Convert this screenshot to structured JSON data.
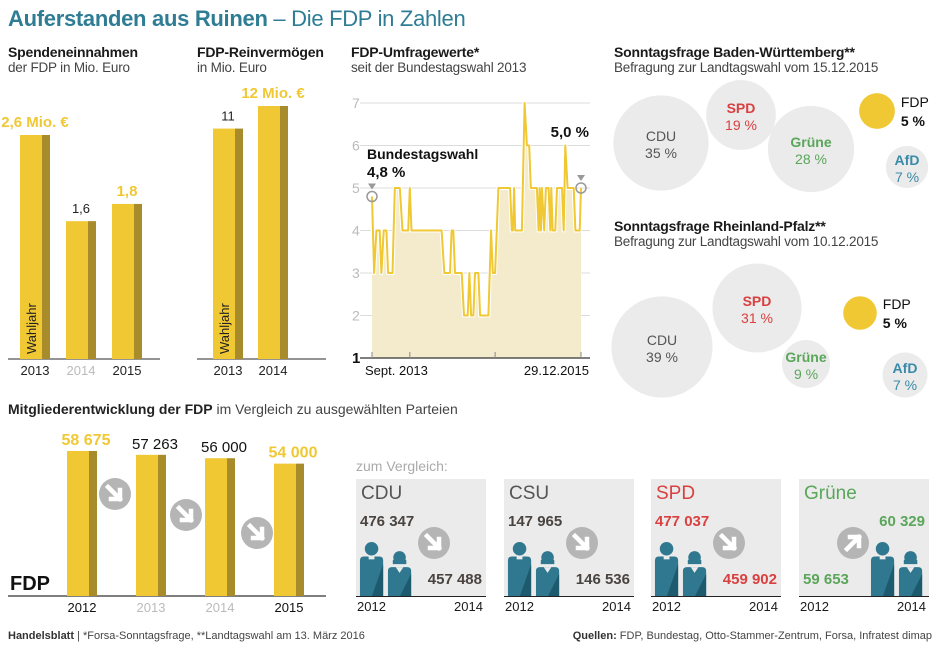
{
  "title": {
    "bold": "Auferstanden aus Ruinen",
    "rest": " – Die FDP in Zahlen"
  },
  "colors": {
    "title": "#2f7d95",
    "fdp_yellow": "#f0c833",
    "fdp_yellow_shadow": "#a88b2a",
    "gray_bubble": "#ebebeb",
    "spd_red": "#d94040",
    "gruene_green": "#5aa65a",
    "afd_blue": "#3a8aa8",
    "cdu_gray": "#555555",
    "people_teal": "#2f7890",
    "arrow_gray": "#b5b5b5",
    "area_fill": "#f3ebcc",
    "muted_year": "#bbbbbb"
  },
  "spenden": {
    "heading": "Spendeneinnahmen",
    "sub": "der FDP in Mio. Euro",
    "wahljahr": "Wahljahr"
  },
  "vermoegen": {
    "heading": "FDP-Reinvermögen",
    "sub": "in Mio. Euro",
    "wahljahr": "Wahljahr"
  },
  "umfrage": {
    "heading": "FDP-Umfragewerte*",
    "sub": "seit der Bundestagswahl 2013",
    "annotation_start_label": "Bundestagswahl",
    "annotation_start_value": "4,8 %",
    "annotation_end_value": "5,0 %"
  },
  "bw": {
    "heading": "Sonntagsfrage Baden-Württemberg**",
    "sub": "Befragung zur Landtagswahl vom 15.12.2015"
  },
  "rp": {
    "heading": "Sonntagsfrage Rheinland-Pfalz**",
    "sub": "Befragung zur Landtagswahl vom 10.12.2015"
  },
  "mitglieder": {
    "heading_bold": "Mitgliederentwicklung der FDP",
    "heading_rest": " im Vergleich zu ausgewählten Parteien",
    "party_label": "FDP",
    "compare_label": "zum Vergleich:"
  },
  "comparison": [
    {
      "party": "CDU",
      "color": "#555555",
      "v2012": "476 347",
      "v2014": "457 488",
      "trend": "down",
      "y2012": "2012",
      "y2014": "2014"
    },
    {
      "party": "CSU",
      "color": "#555555",
      "v2012": "147 965",
      "v2014": "146 536",
      "trend": "down",
      "y2012": "2012",
      "y2014": "2014"
    },
    {
      "party": "SPD",
      "color": "#d94040",
      "v2012": "477 037",
      "v2014": "459 902",
      "trend": "down",
      "y2012": "2012",
      "y2014": "2014"
    },
    {
      "party": "Grüne",
      "color": "#5aa65a",
      "v2012": "59 653",
      "v2014": "60 329",
      "trend": "up",
      "y2012": "2012",
      "y2014": "2014"
    }
  ],
  "footer": {
    "brand": "Handelsblatt",
    "note": " | *Forsa-Sonntagsfrage, **Landtagswahl am 13. März 2016",
    "sources_label": "Quellen:",
    "sources": " FDP, Bundestag, Otto-Stammer-Zentrum, Forsa, Infratest dimap"
  },
  "chart_data": [
    {
      "id": "spenden",
      "type": "bar",
      "title": "Spendeneinnahmen der FDP in Mio. Euro",
      "categories": [
        "2013",
        "2014",
        "2015"
      ],
      "values": [
        2.6,
        1.6,
        1.8
      ],
      "labels": [
        "2,6 Mio. €",
        "1,6",
        "1,8"
      ],
      "highlight": [
        true,
        false,
        true
      ],
      "category_muted": [
        false,
        true,
        false
      ],
      "annotation": "Wahljahr (2013)",
      "ylim": [
        0,
        2.6
      ]
    },
    {
      "id": "vermoegen",
      "type": "bar",
      "title": "FDP-Reinvermögen in Mio. Euro",
      "categories": [
        "2013",
        "2014"
      ],
      "values": [
        11,
        12
      ],
      "labels": [
        "11",
        "12 Mio. €"
      ],
      "highlight": [
        false,
        true
      ],
      "category_muted": [
        false,
        false
      ],
      "annotation": "Wahljahr (2013)",
      "ylim": [
        0,
        12
      ]
    },
    {
      "id": "umfrage",
      "type": "line",
      "title": "FDP-Umfragewerte* seit der Bundestagswahl 2013",
      "xlabel_start": "Sept. 2013",
      "xlabel_end": "29.12.2015",
      "ylim": [
        1,
        7
      ],
      "yticks": [
        1,
        2,
        3,
        4,
        5,
        6,
        7
      ],
      "x": [
        0,
        0.01,
        0.021,
        0.037,
        0.045,
        0.056,
        0.069,
        0.077,
        0.098,
        0.109,
        0.133,
        0.146,
        0.173,
        0.181,
        0.189,
        0.333,
        0.346,
        0.373,
        0.381,
        0.389,
        0.397,
        0.429,
        0.44,
        0.458,
        0.466,
        0.474,
        0.485,
        0.493,
        0.509,
        0.517,
        0.557,
        0.57,
        0.578,
        0.589,
        0.605,
        0.661,
        0.669,
        0.674,
        0.68,
        0.685,
        0.717,
        0.73,
        0.741,
        0.752,
        0.76,
        0.789,
        0.797,
        0.802,
        0.808,
        0.813,
        0.824,
        0.832,
        0.845,
        0.853,
        0.858,
        0.864,
        0.877,
        0.885,
        0.909,
        0.917,
        0.925,
        0.936,
        0.965,
        0.973,
        0.994,
        1.0
      ],
      "values": [
        4.8,
        3,
        4,
        4,
        3,
        4,
        4,
        3,
        3,
        5,
        5,
        4,
        4,
        5,
        4,
        4,
        3,
        3,
        4,
        4,
        3,
        3,
        2,
        2,
        3,
        2,
        2,
        3,
        3,
        2,
        2,
        4,
        3,
        3,
        5,
        5,
        4,
        4,
        5,
        4,
        4,
        7,
        6,
        6,
        5,
        5,
        4,
        5,
        4,
        5,
        4,
        5,
        5,
        4,
        5,
        4,
        4,
        5,
        5,
        4,
        6,
        5,
        5,
        4,
        4,
        5
      ],
      "start_value": 4.8,
      "end_value": 5.0
    },
    {
      "id": "bw",
      "type": "bubble",
      "title": "Sonntagsfrage Baden-Württemberg",
      "categories": [
        "CDU",
        "SPD",
        "Grüne",
        "FDP",
        "AfD"
      ],
      "values": [
        35,
        19,
        28,
        5,
        7
      ],
      "labels": [
        "35 %",
        "19 %",
        "28 %",
        "5 %",
        "7 %"
      ]
    },
    {
      "id": "rp",
      "type": "bubble",
      "title": "Sonntagsfrage Rheinland-Pfalz",
      "categories": [
        "CDU",
        "SPD",
        "Grüne",
        "FDP",
        "AfD"
      ],
      "values": [
        39,
        31,
        9,
        5,
        7
      ],
      "labels": [
        "39 %",
        "31 %",
        "9 %",
        "5 %",
        "7 %"
      ]
    },
    {
      "id": "mitglieder",
      "type": "bar",
      "title": "Mitgliederentwicklung der FDP",
      "categories": [
        "2012",
        "2013",
        "2014",
        "2015"
      ],
      "values": [
        58675,
        57263,
        56000,
        54000
      ],
      "labels": [
        "58 675",
        "57 263",
        "56 000",
        "54 000"
      ],
      "highlight": [
        true,
        false,
        false,
        true
      ],
      "category_muted": [
        false,
        true,
        true,
        false
      ],
      "trend_arrows": [
        "down",
        "down",
        "down"
      ]
    }
  ]
}
